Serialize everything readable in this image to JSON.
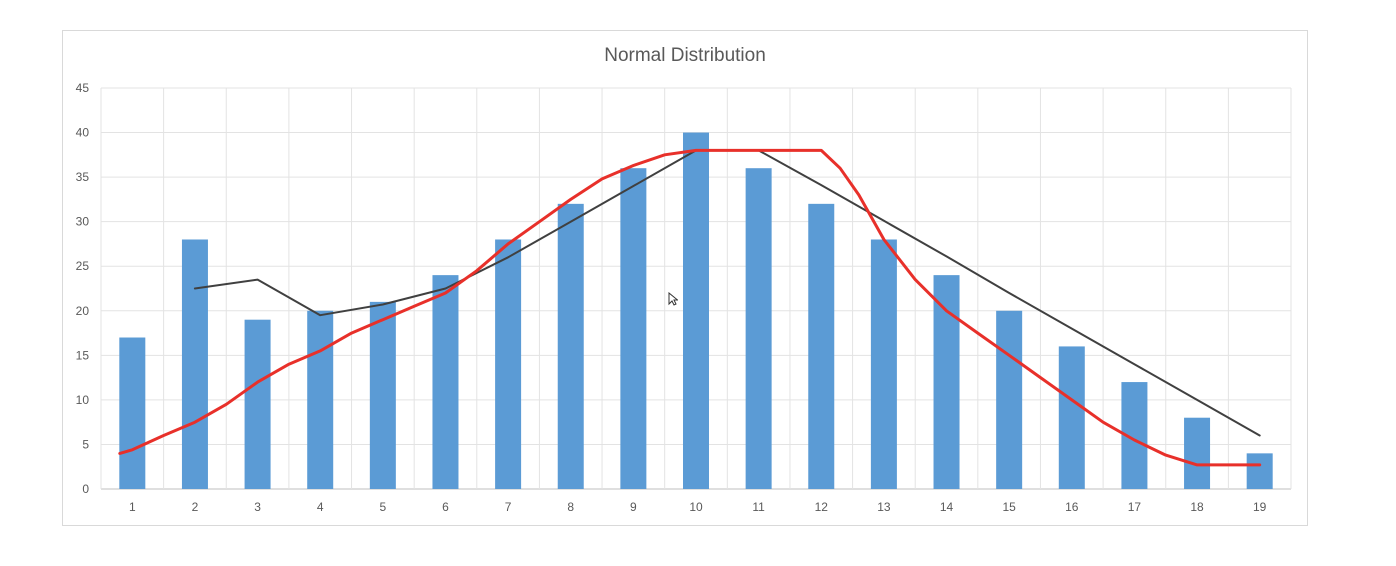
{
  "chart_data": {
    "type": "bar",
    "title": "Normal Distribution",
    "xlabel": "",
    "ylabel": "",
    "ylim": [
      0,
      45
    ],
    "yticks": [
      0,
      5,
      10,
      15,
      20,
      25,
      30,
      35,
      40,
      45
    ],
    "categories": [
      "1",
      "2",
      "3",
      "4",
      "5",
      "6",
      "7",
      "8",
      "9",
      "10",
      "11",
      "12",
      "13",
      "14",
      "15",
      "16",
      "17",
      "18",
      "19"
    ],
    "grid": true,
    "legend": "none",
    "series": [
      {
        "kind": "bar",
        "color": "#5b9bd5",
        "values": [
          17,
          28,
          19,
          20,
          21,
          24,
          28,
          32,
          36,
          40,
          36,
          32,
          28,
          24,
          20,
          16,
          12,
          8,
          4
        ]
      },
      {
        "kind": "line",
        "color": "#404040",
        "points": [
          [
            2,
            22.5
          ],
          [
            3,
            23.5
          ],
          [
            4,
            19.5
          ],
          [
            5,
            20.7
          ],
          [
            6,
            22.5
          ],
          [
            7,
            26
          ],
          [
            8,
            30
          ],
          [
            9,
            34
          ],
          [
            10,
            38
          ],
          [
            11,
            38
          ],
          [
            12,
            34.1
          ],
          [
            13,
            30.1
          ],
          [
            14,
            26.1
          ],
          [
            15,
            22
          ],
          [
            16,
            18
          ],
          [
            17,
            14
          ],
          [
            18,
            10
          ],
          [
            19,
            6
          ]
        ]
      },
      {
        "kind": "line",
        "color": "#e8302a",
        "points": [
          [
            0.8,
            4
          ],
          [
            1,
            4.4
          ],
          [
            1.5,
            6
          ],
          [
            2,
            7.5
          ],
          [
            2.5,
            9.5
          ],
          [
            3,
            12
          ],
          [
            3.5,
            14
          ],
          [
            4,
            15.5
          ],
          [
            4.5,
            17.5
          ],
          [
            5,
            19
          ],
          [
            5.5,
            20.5
          ],
          [
            6,
            22
          ],
          [
            6.5,
            24.5
          ],
          [
            7,
            27.5
          ],
          [
            7.5,
            30
          ],
          [
            8,
            32.5
          ],
          [
            8.5,
            34.8
          ],
          [
            9,
            36.3
          ],
          [
            9.5,
            37.5
          ],
          [
            10,
            38
          ],
          [
            10.5,
            38
          ],
          [
            11,
            38
          ],
          [
            11.5,
            38
          ],
          [
            12,
            38
          ],
          [
            12.3,
            36
          ],
          [
            12.6,
            33
          ],
          [
            13,
            28
          ],
          [
            13.5,
            23.5
          ],
          [
            14,
            20
          ],
          [
            14.5,
            17.5
          ],
          [
            15,
            15
          ],
          [
            15.5,
            12.5
          ],
          [
            16,
            10
          ],
          [
            16.5,
            7.5
          ],
          [
            17,
            5.5
          ],
          [
            17.5,
            3.8
          ],
          [
            18,
            2.7
          ],
          [
            18.5,
            2.7
          ],
          [
            19,
            2.7
          ]
        ]
      }
    ]
  }
}
